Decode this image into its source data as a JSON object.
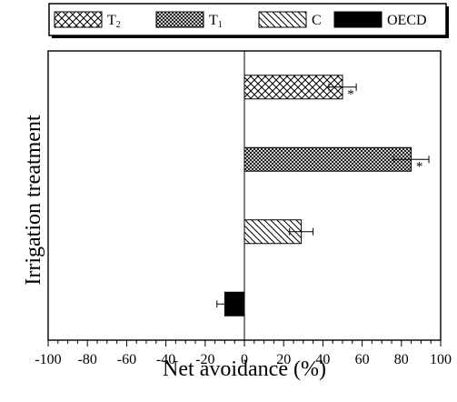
{
  "chart_data": {
    "type": "bar",
    "orientation": "horizontal",
    "xlabel": "Net avoidance (%)",
    "ylabel": "Irrigation treatment",
    "xlim": [
      -100,
      100
    ],
    "x_ticks": [
      -100,
      -80,
      -60,
      -40,
      -20,
      0,
      20,
      40,
      60,
      80,
      100
    ],
    "x_minor_step": 5,
    "grid": false,
    "legend_position": "top",
    "legend": [
      {
        "label": "T",
        "subscript": "2",
        "pattern": "crosshatch"
      },
      {
        "label": "T",
        "subscript": "1",
        "pattern": "dense-crosshatch"
      },
      {
        "label": "C",
        "pattern": "diagonal"
      },
      {
        "label": "OECD",
        "pattern": "solid"
      }
    ],
    "series": [
      {
        "category": "T2",
        "value": 50,
        "error": 7,
        "significance": "*",
        "pattern": "crosshatch"
      },
      {
        "category": "T1",
        "value": 85,
        "error": 9,
        "significance": "*",
        "pattern": "dense-crosshatch"
      },
      {
        "category": "C",
        "value": 29,
        "error": 6,
        "significance": "",
        "pattern": "diagonal"
      },
      {
        "category": "OECD",
        "value": -10,
        "error": 4,
        "significance": "",
        "pattern": "solid"
      }
    ]
  }
}
